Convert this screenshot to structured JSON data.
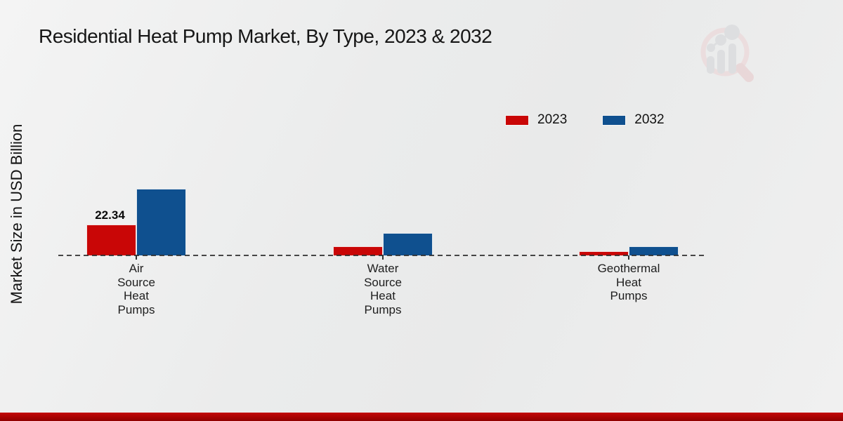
{
  "title": "Residential Heat Pump Market, By Type, 2023 & 2032",
  "y_axis_label": "Market Size in USD Billion",
  "watermark": {
    "name": "magnifier-bar-chart-logo"
  },
  "colors": {
    "accent_2023": "#c90606",
    "accent_2032": "#0f508f",
    "baseline": "#2e2e2e",
    "footer_band": "#a90303",
    "background": "#ededee"
  },
  "legend": {
    "items": [
      {
        "label": "2023",
        "color": "#c90606"
      },
      {
        "label": "2032",
        "color": "#0f508f"
      }
    ]
  },
  "chart_data": {
    "type": "bar",
    "title": "Residential Heat Pump Market, By Type, 2023 & 2032",
    "ylabel": "Market Size in USD Billion",
    "xlabel": "",
    "categories": [
      "Air Source Heat Pumps",
      "Water Source Heat Pumps",
      "Geothermal Heat Pumps"
    ],
    "series": [
      {
        "name": "2023",
        "color": "#c90606",
        "values": [
          22.34,
          6.6,
          3.0
        ],
        "point_labels": [
          "22.34",
          "",
          ""
        ]
      },
      {
        "name": "2032",
        "color": "#0f508f",
        "values": [
          48.2,
          16.2,
          6.6
        ],
        "point_labels": [
          "",
          "",
          ""
        ]
      }
    ],
    "ylim": [
      0,
      50
    ],
    "grid": "off",
    "baseline_style": "dashed",
    "legend_position": "top-right",
    "data_label_shown": "22.34"
  }
}
